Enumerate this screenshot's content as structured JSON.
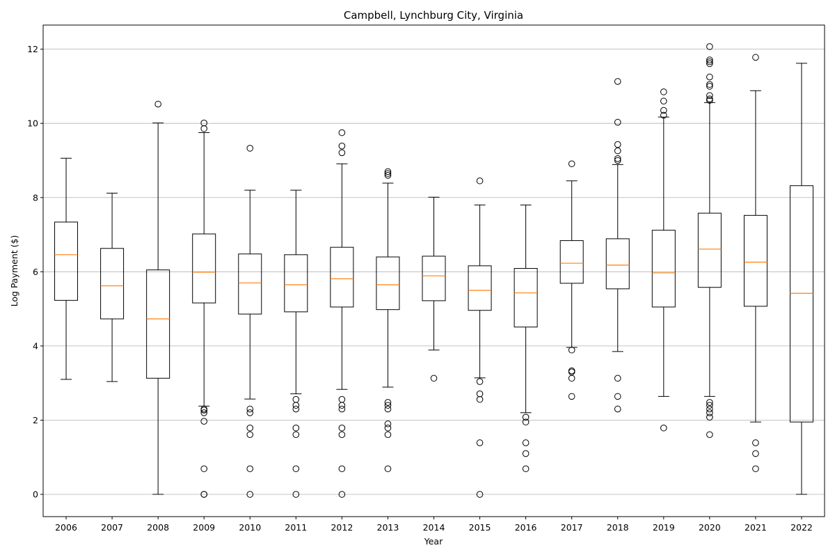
{
  "chart_data": {
    "type": "boxplot",
    "title": "Campbell, Lynchburg City, Virginia",
    "xlabel": "Year",
    "ylabel": "Log Payment ($)",
    "ylim": [
      -0.6,
      12.65
    ],
    "yticks": [
      0,
      2,
      4,
      6,
      8,
      10,
      12
    ],
    "grid": "y",
    "box_color": "#000000",
    "median_color": "#ff7f0e",
    "categories": [
      "2006",
      "2007",
      "2008",
      "2009",
      "2010",
      "2011",
      "2012",
      "2013",
      "2014",
      "2015",
      "2016",
      "2017",
      "2018",
      "2019",
      "2020",
      "2021",
      "2022"
    ],
    "boxes": [
      {
        "whislo": 3.1,
        "q1": 5.23,
        "med": 6.46,
        "q3": 7.34,
        "whishi": 9.06,
        "fliers": []
      },
      {
        "whislo": 3.04,
        "q1": 4.73,
        "med": 5.62,
        "q3": 6.63,
        "whishi": 8.12,
        "fliers": []
      },
      {
        "whislo": 0.0,
        "q1": 3.13,
        "med": 4.73,
        "q3": 6.05,
        "whishi": 10.01,
        "fliers": [
          10.52
        ]
      },
      {
        "whislo": 2.38,
        "q1": 5.16,
        "med": 5.99,
        "q3": 7.02,
        "whishi": 9.75,
        "fliers": [
          10.01,
          9.86,
          2.3,
          2.27,
          2.2,
          1.97,
          0.69,
          0.0,
          0.0
        ]
      },
      {
        "whislo": 2.57,
        "q1": 4.86,
        "med": 5.7,
        "q3": 6.48,
        "whishi": 8.2,
        "fliers": [
          9.33,
          2.3,
          2.2,
          1.79,
          1.61,
          0.69,
          0.0
        ]
      },
      {
        "whislo": 2.71,
        "q1": 4.92,
        "med": 5.65,
        "q3": 6.46,
        "whishi": 8.2,
        "fliers": [
          2.56,
          2.4,
          2.3,
          1.79,
          1.61,
          0.69,
          0.0
        ]
      },
      {
        "whislo": 2.83,
        "q1": 5.05,
        "med": 5.81,
        "q3": 6.66,
        "whishi": 8.91,
        "fliers": [
          9.75,
          9.39,
          9.21,
          2.56,
          2.4,
          2.3,
          1.79,
          1.61,
          0.69,
          0.0
        ]
      },
      {
        "whislo": 2.89,
        "q1": 4.98,
        "med": 5.65,
        "q3": 6.4,
        "whishi": 8.39,
        "fliers": [
          8.7,
          8.65,
          8.6,
          2.48,
          2.4,
          2.3,
          1.9,
          1.79,
          1.61,
          0.69
        ]
      },
      {
        "whislo": 3.89,
        "q1": 5.22,
        "med": 5.89,
        "q3": 6.42,
        "whishi": 8.01,
        "fliers": [
          3.13
        ]
      },
      {
        "whislo": 3.14,
        "q1": 4.96,
        "med": 5.5,
        "q3": 6.16,
        "whishi": 7.8,
        "fliers": [
          8.45,
          3.04,
          2.71,
          2.56,
          1.39,
          0.0
        ]
      },
      {
        "whislo": 2.2,
        "q1": 4.51,
        "med": 5.43,
        "q3": 6.09,
        "whishi": 7.8,
        "fliers": [
          2.08,
          1.95,
          1.39,
          1.1,
          0.69
        ]
      },
      {
        "whislo": 3.96,
        "q1": 5.69,
        "med": 6.23,
        "q3": 6.84,
        "whishi": 8.45,
        "fliers": [
          8.91,
          3.89,
          3.33,
          3.3,
          3.13,
          2.64
        ]
      },
      {
        "whislo": 3.85,
        "q1": 5.54,
        "med": 6.18,
        "q3": 6.89,
        "whishi": 8.89,
        "fliers": [
          11.13,
          10.03,
          9.43,
          9.26,
          9.05,
          9.0,
          3.13,
          2.64,
          2.3
        ]
      },
      {
        "whislo": 2.64,
        "q1": 5.05,
        "med": 5.97,
        "q3": 7.12,
        "whishi": 10.17,
        "fliers": [
          10.85,
          10.6,
          10.35,
          10.22,
          1.79
        ]
      },
      {
        "whislo": 2.64,
        "q1": 5.58,
        "med": 6.61,
        "q3": 7.58,
        "whishi": 10.56,
        "fliers": [
          12.07,
          11.71,
          11.66,
          11.61,
          11.25,
          11.05,
          11.0,
          10.75,
          10.66,
          10.62,
          2.48,
          2.4,
          2.3,
          2.2,
          2.08,
          1.61
        ]
      },
      {
        "whislo": 1.95,
        "q1": 5.07,
        "med": 6.26,
        "q3": 7.52,
        "whishi": 10.88,
        "fliers": [
          11.78,
          1.39,
          1.1,
          0.69
        ]
      },
      {
        "whislo": 0.0,
        "q1": 1.95,
        "med": 5.42,
        "q3": 8.32,
        "whishi": 11.62,
        "fliers": []
      }
    ]
  }
}
